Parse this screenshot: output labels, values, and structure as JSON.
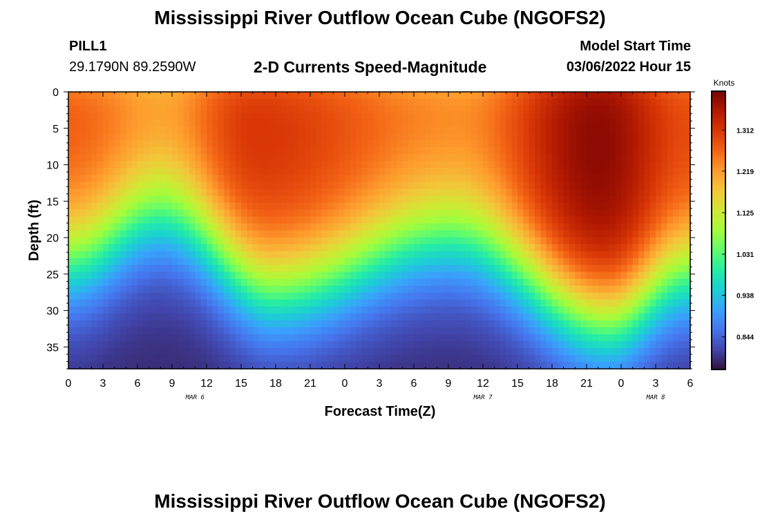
{
  "header": {
    "title": "Mississippi River Outflow Ocean Cube (NGOFS2)",
    "station_id": "PILL1",
    "station_coords": "29.1790N  89.2590W",
    "subtitle": "2-D Currents Speed-Magnitude",
    "model_start_label": "Model Start Time",
    "model_start_value": "03/06/2022 Hour 15"
  },
  "footer": {
    "title": "Mississippi River Outflow Ocean Cube (NGOFS2)"
  },
  "colors": {
    "colormap": [
      "#30123b",
      "#4145ab",
      "#4675ed",
      "#39a2fc",
      "#1bcfd4",
      "#24eca6",
      "#61fc6c",
      "#a4fc3b",
      "#d1e834",
      "#f3c63a",
      "#fe9b2d",
      "#f36315",
      "#d93806",
      "#b11901",
      "#7a0403"
    ]
  },
  "chart_data": {
    "type": "heatmap",
    "xlabel": "Forecast Time(Z)",
    "ylabel": "Depth (ft)",
    "x_ticks": [
      "0",
      "3",
      "6",
      "9",
      "12",
      "15",
      "18",
      "21",
      "0",
      "3",
      "6",
      "9",
      "12",
      "15",
      "18",
      "21",
      "0",
      "3",
      "6"
    ],
    "x_hours_range": [
      0,
      54
    ],
    "date_labels": [
      {
        "label": "MAR 6",
        "hour": 11
      },
      {
        "label": "MAR 7",
        "hour": 36
      },
      {
        "label": "MAR 8",
        "hour": 51
      }
    ],
    "y_ticks": [
      "0",
      "5",
      "10",
      "15",
      "20",
      "25",
      "30",
      "35"
    ],
    "y_values": [
      0,
      5,
      10,
      15,
      20,
      25,
      30,
      35
    ],
    "ylim": [
      38,
      0
    ],
    "colorbar": {
      "label": "Knots",
      "ticks": [
        "1.312",
        "1.219",
        "1.125",
        "1.031",
        "0.938",
        "0.844"
      ],
      "tick_values": [
        1.312,
        1.219,
        1.125,
        1.031,
        0.938,
        0.844
      ],
      "range": [
        0.77,
        1.4
      ]
    },
    "speed_model": {
      "surface_max": [
        {
          "hour": 0,
          "value": 1.28
        },
        {
          "hour": 8,
          "value": 1.24
        },
        {
          "hour": 16,
          "value": 1.32
        },
        {
          "hour": 34,
          "value": 1.25
        },
        {
          "hour": 46,
          "value": 1.39
        },
        {
          "hour": 54,
          "value": 1.3
        }
      ],
      "bottom_value": 0.79,
      "transition_depth": [
        {
          "hour": 0,
          "value": 23
        },
        {
          "hour": 8,
          "value": 17
        },
        {
          "hour": 18,
          "value": 27
        },
        {
          "hour": 33,
          "value": 20
        },
        {
          "hour": 47,
          "value": 31
        },
        {
          "hour": 54,
          "value": 25
        }
      ]
    }
  }
}
